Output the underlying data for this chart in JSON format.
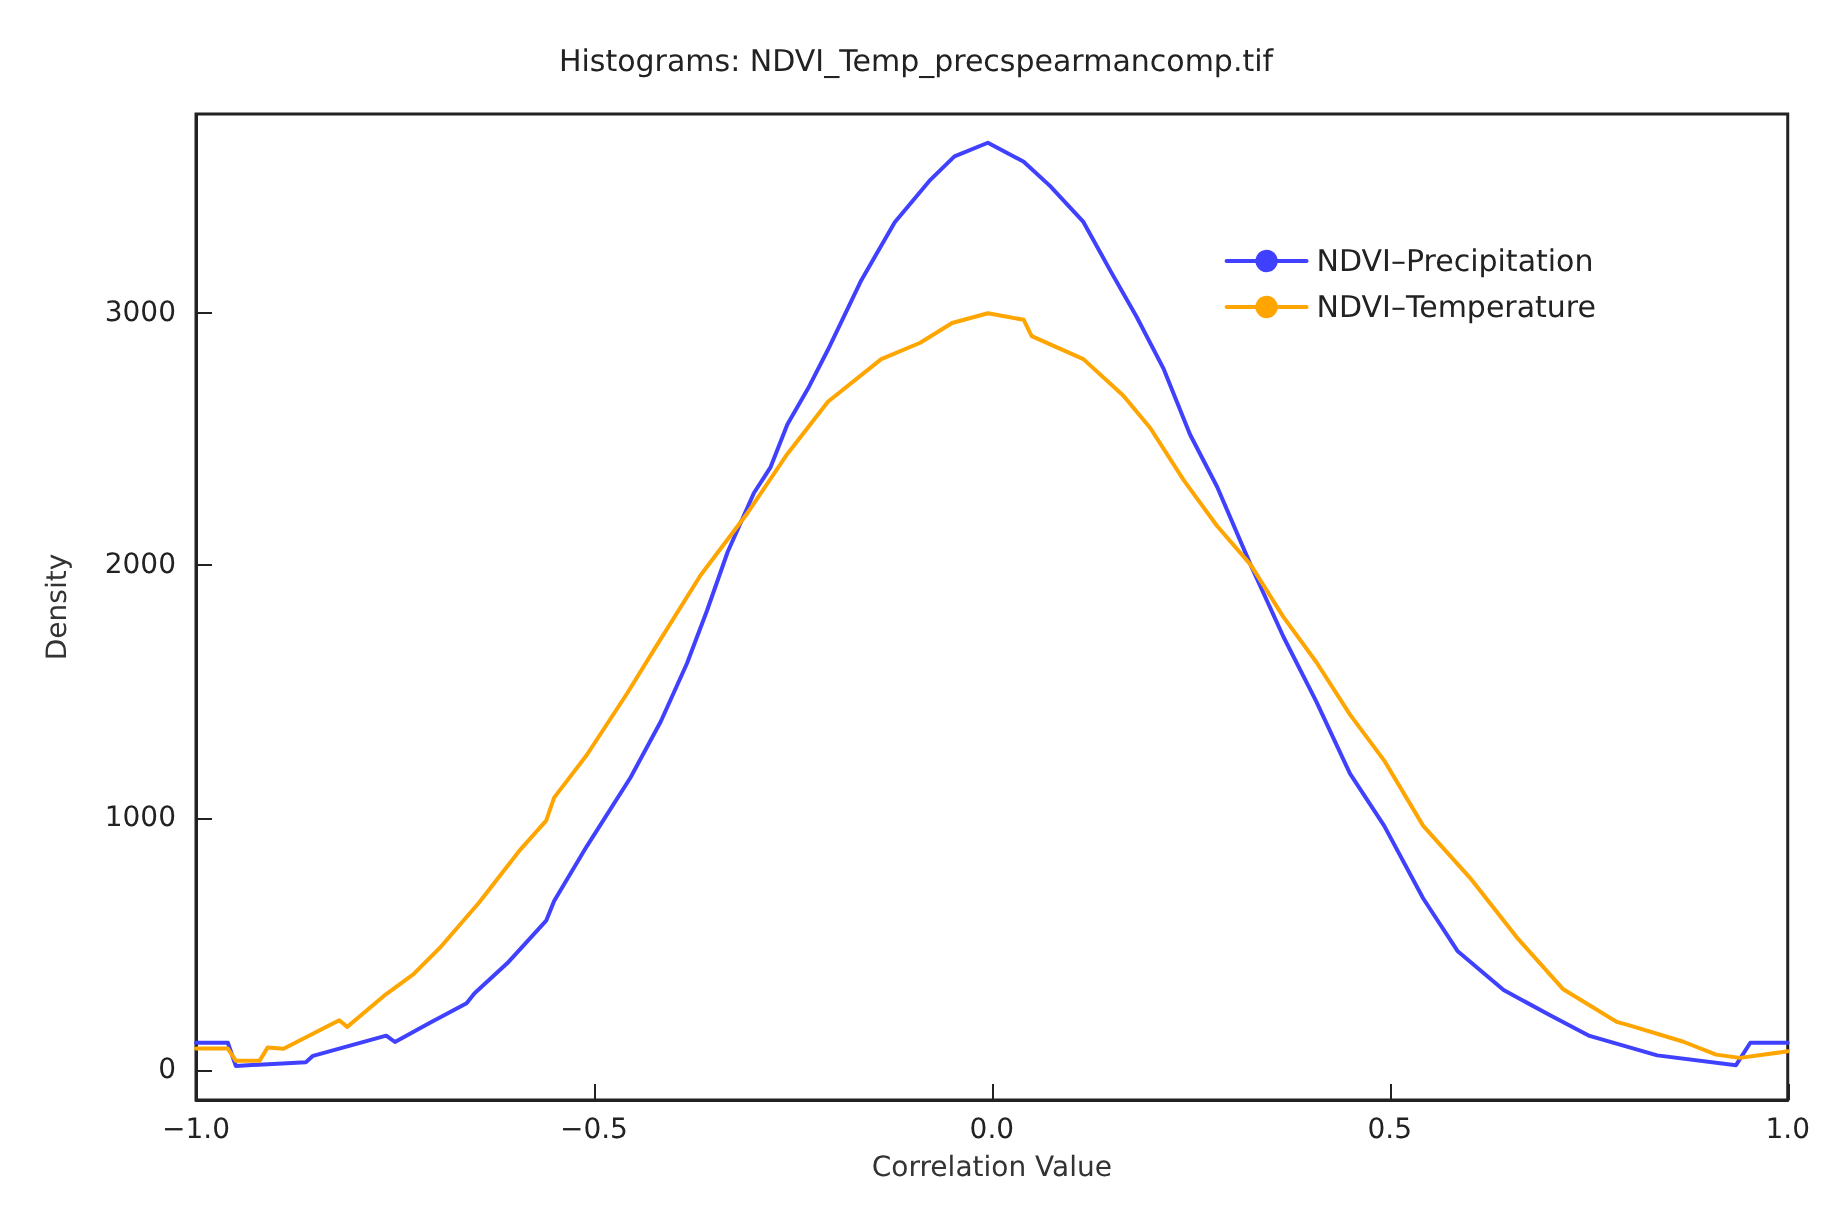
{
  "chart_data": {
    "type": "line",
    "title": "Histograms: NDVI_Temp_precspearmancomp.tif",
    "xlabel": "Correlation Value",
    "ylabel": "Density",
    "xlim": [
      -1.0,
      1.0
    ],
    "xticks": [
      {
        "value": -1,
        "label": "−1.0"
      },
      {
        "value": -0.5,
        "label": "−0.5"
      },
      {
        "value": 0,
        "label": "0.0"
      },
      {
        "value": 0.5,
        "label": "0.5"
      },
      {
        "value": 1,
        "label": "1.0"
      }
    ],
    "ylim": [
      -120,
      3790
    ],
    "yticks": [
      0,
      1000,
      2000,
      3000
    ],
    "grid": false,
    "legend": "top right",
    "marker": "none",
    "line_style": "solid",
    "series": [
      {
        "name": "NDVI–Precipitation",
        "color": "#4040ff",
        "x": [
          -1.0,
          -0.96,
          -0.95,
          -0.862,
          -0.853,
          -0.761,
          -0.75,
          -0.706,
          -0.66,
          -0.65,
          -0.609,
          -0.56,
          -0.55,
          -0.509,
          -0.454,
          -0.416,
          -0.383,
          -0.358,
          -0.332,
          -0.299,
          -0.278,
          -0.257,
          -0.231,
          -0.206,
          -0.164,
          -0.122,
          -0.077,
          -0.047,
          -0.005,
          0.04,
          0.073,
          0.115,
          0.149,
          0.182,
          0.216,
          0.249,
          0.283,
          0.325,
          0.366,
          0.408,
          0.45,
          0.493,
          0.542,
          0.585,
          0.643,
          0.702,
          0.751,
          0.836,
          0.935,
          0.953,
          1.0
        ],
        "values": [
          107,
          107,
          15,
          30,
          55,
          135,
          110,
          186,
          264,
          303,
          422,
          591,
          669,
          886,
          1159,
          1381,
          1612,
          1820,
          2053,
          2287,
          2390,
          2559,
          2701,
          2855,
          3131,
          3361,
          3530,
          3622,
          3676,
          3601,
          3505,
          3362,
          3168,
          2985,
          2778,
          2519,
          2312,
          2003,
          1719,
          1458,
          1174,
          967,
          679,
          471,
          316,
          215,
          134,
          57,
          18,
          107,
          107
        ]
      },
      {
        "name": "NDVI–Temperature",
        "color": "#ffa500",
        "x": [
          -1.0,
          -0.96,
          -0.95,
          -0.92,
          -0.91,
          -0.89,
          -0.82,
          -0.81,
          -0.761,
          -0.727,
          -0.694,
          -0.644,
          -0.593,
          -0.56,
          -0.55,
          -0.509,
          -0.458,
          -0.425,
          -0.366,
          -0.307,
          -0.257,
          -0.206,
          -0.139,
          -0.09,
          -0.05,
          -0.005,
          0.04,
          0.05,
          0.115,
          0.165,
          0.199,
          0.241,
          0.283,
          0.325,
          0.366,
          0.408,
          0.45,
          0.493,
          0.542,
          0.601,
          0.659,
          0.718,
          0.785,
          0.8,
          0.868,
          0.91,
          0.94,
          1.0
        ],
        "values": [
          84,
          84,
          36,
          36,
          88,
          83,
          196,
          170,
          300,
          378,
          482,
          664,
          871,
          988,
          1079,
          1248,
          1494,
          1663,
          1961,
          2208,
          2442,
          2649,
          2818,
          2883,
          2961,
          3000,
          2974,
          2909,
          2818,
          2674,
          2545,
          2338,
          2156,
          2003,
          1797,
          1615,
          1408,
          1226,
          967,
          760,
          527,
          319,
          190,
          177,
          112,
          60,
          47,
          73
        ]
      }
    ]
  }
}
